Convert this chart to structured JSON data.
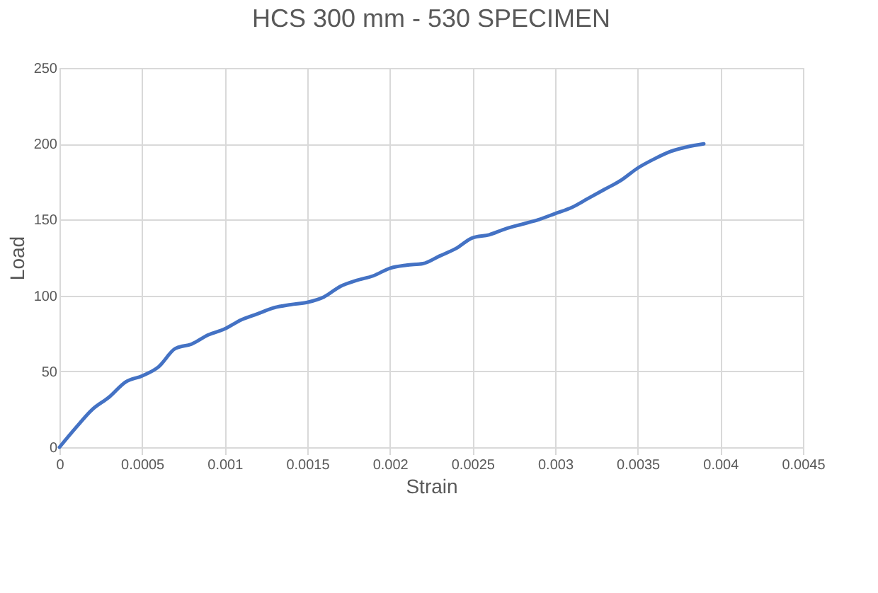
{
  "chart_data": {
    "type": "line",
    "title": "HCS 300 mm - 530 SPECIMEN",
    "xlabel": "Strain",
    "ylabel": "Load",
    "x": [
      0,
      0.0001,
      0.0002,
      0.0003,
      0.0004,
      0.0005,
      0.0006,
      0.0007,
      0.0008,
      0.0009,
      0.001,
      0.0011,
      0.0012,
      0.0013,
      0.0014,
      0.0015,
      0.0016,
      0.0017,
      0.0018,
      0.0019,
      0.002,
      0.0021,
      0.0022,
      0.0023,
      0.0024,
      0.0025,
      0.0026,
      0.0027,
      0.0028,
      0.0029,
      0.003,
      0.0031,
      0.0032,
      0.0033,
      0.0034,
      0.0035,
      0.0036,
      0.0037,
      0.0038,
      0.0039
    ],
    "series": [
      {
        "color": "#4472c4",
        "values": [
          0,
          13,
          25,
          33,
          43,
          47,
          53,
          65,
          68,
          74,
          78,
          84,
          88,
          92,
          94,
          95.5,
          99,
          106,
          110,
          113,
          118,
          120,
          121,
          126,
          131,
          138,
          140,
          144,
          147,
          150,
          154,
          158,
          164,
          170,
          176,
          184,
          190,
          195,
          198,
          200
        ]
      }
    ],
    "xlim": [
      0,
      0.0045
    ],
    "xticks": [
      0,
      0.0005,
      0.001,
      0.0015,
      0.002,
      0.0025,
      0.003,
      0.0035,
      0.004,
      0.0045
    ],
    "ylim": [
      0,
      250
    ],
    "yticks": [
      0,
      50,
      100,
      150,
      200,
      250
    ],
    "grid": true,
    "legend": false,
    "marker": "none",
    "line_style": "solid"
  }
}
